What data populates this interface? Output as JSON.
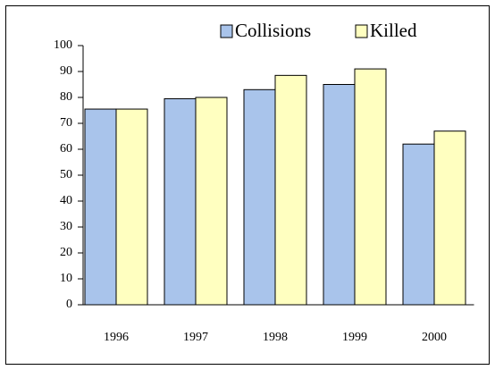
{
  "chart_data": {
    "type": "bar",
    "categories": [
      "1996",
      "1997",
      "1998",
      "1999",
      "2000"
    ],
    "series": [
      {
        "name": "Collisions",
        "color": "#a9c4eb",
        "values": [
          75.5,
          79.5,
          83,
          85,
          62
        ]
      },
      {
        "name": "Killed",
        "color": "#ffffc0",
        "values": [
          75.5,
          80,
          88.5,
          91,
          67
        ]
      }
    ],
    "ylim": [
      0,
      100
    ],
    "yticks": [
      0,
      10,
      20,
      30,
      40,
      50,
      60,
      70,
      80,
      90,
      100
    ],
    "grid": false,
    "legend": "top"
  }
}
